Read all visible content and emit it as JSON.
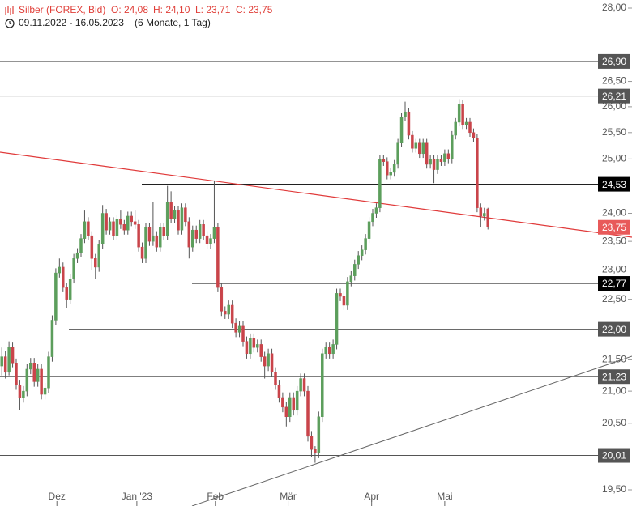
{
  "header": {
    "title": "Silber (FOREX, Bid)",
    "ohlc_labels": [
      "O: 24,08",
      "H: 24,10",
      "L: 23,71",
      "C: 23,75"
    ],
    "range": "09.11.2022 - 16.05.2023",
    "period": "(6 Monate, 1 Tag)"
  },
  "chart_data": {
    "type": "candlestick",
    "log": true,
    "up_color": "#5c9e5c",
    "down_color": "#c9444a",
    "ylim": [
      19.5,
      28
    ],
    "yticks": [
      {
        "value": 19.5,
        "label": "19,50"
      },
      {
        "value": 20.5,
        "label": "20,50"
      },
      {
        "value": 21,
        "label": "21,00"
      },
      {
        "value": 21.5,
        "label": "21,50"
      },
      {
        "value": 22.5,
        "label": "22,50"
      },
      {
        "value": 23,
        "label": "23,00"
      },
      {
        "value": 23.5,
        "label": "23,50"
      },
      {
        "value": 24,
        "label": "24,00"
      },
      {
        "value": 25,
        "label": "25,00"
      },
      {
        "value": 25.5,
        "label": "25,50"
      },
      {
        "value": 26,
        "label": "26,00"
      },
      {
        "value": 26.5,
        "label": "26,50"
      },
      {
        "value": 28,
        "label": "28,00"
      }
    ],
    "xlim": [
      -0.5,
      175
    ],
    "xticks": [
      {
        "value": 15.3,
        "label": "Dez"
      },
      {
        "value": 37.5,
        "label": "Jan '23"
      },
      {
        "value": 59.3,
        "label": "Feb"
      },
      {
        "value": 79.5,
        "label": "Mär"
      },
      {
        "value": 102.7,
        "label": "Apr"
      },
      {
        "value": 123,
        "label": "Mai"
      }
    ],
    "levels": [
      {
        "value": 26.9,
        "label": "26,90",
        "color": "#555555"
      },
      {
        "value": 26.21,
        "label": "26,21",
        "color": "#555555"
      },
      {
        "value": 24.53,
        "label": "24,53",
        "color": "#000000"
      },
      {
        "value": 23.75,
        "label": "23,75",
        "color": "#e85a5a"
      },
      {
        "value": 22.77,
        "label": "22,77",
        "color": "#000000"
      },
      {
        "value": 22.0,
        "label": "22,00",
        "color": "#555555"
      },
      {
        "value": 21.23,
        "label": "21,23",
        "color": "#555555"
      },
      {
        "value": 20.01,
        "label": "20,01",
        "color": "#555555"
      }
    ],
    "ohlc": [
      [
        21.4,
        21.7,
        21.25,
        21.55
      ],
      [
        21.55,
        21.65,
        21.2,
        21.3
      ],
      [
        21.3,
        21.8,
        21.25,
        21.7
      ],
      [
        21.7,
        21.78,
        21.38,
        21.45
      ],
      [
        21.45,
        21.52,
        21.02,
        21.1
      ],
      [
        21.1,
        21.18,
        20.7,
        20.9
      ],
      [
        20.9,
        21.08,
        20.82,
        21.0
      ],
      [
        21.0,
        21.43,
        20.92,
        21.35
      ],
      [
        21.35,
        21.53,
        21.27,
        21.45
      ],
      [
        21.45,
        21.53,
        21.07,
        21.15
      ],
      [
        21.15,
        21.43,
        21.07,
        21.35
      ],
      [
        21.35,
        21.43,
        20.87,
        20.95
      ],
      [
        20.95,
        21.13,
        20.87,
        21.05
      ],
      [
        21.05,
        21.63,
        20.97,
        21.55
      ],
      [
        21.55,
        22.23,
        21.47,
        22.15
      ],
      [
        22.15,
        23.03,
        22.07,
        22.95
      ],
      [
        22.95,
        23.2,
        22.87,
        23.05
      ],
      [
        23.05,
        23.13,
        22.62,
        22.7
      ],
      [
        22.7,
        22.78,
        22.35,
        22.5
      ],
      [
        22.5,
        22.93,
        22.42,
        22.85
      ],
      [
        22.85,
        23.28,
        22.77,
        23.2
      ],
      [
        23.2,
        23.38,
        23.12,
        23.3
      ],
      [
        23.3,
        23.63,
        23.22,
        23.55
      ],
      [
        23.55,
        24.05,
        23.47,
        23.85
      ],
      [
        23.85,
        23.93,
        23.52,
        23.6
      ],
      [
        23.6,
        23.68,
        23.0,
        23.2
      ],
      [
        23.2,
        23.28,
        22.85,
        23.05
      ],
      [
        23.05,
        23.53,
        22.97,
        23.45
      ],
      [
        23.45,
        24.15,
        23.37,
        24.0
      ],
      [
        24.0,
        24.08,
        23.62,
        23.7
      ],
      [
        23.7,
        23.93,
        23.62,
        23.85
      ],
      [
        23.85,
        23.93,
        23.52,
        23.6
      ],
      [
        23.6,
        23.98,
        23.52,
        23.9
      ],
      [
        23.9,
        24.05,
        23.72,
        23.8
      ],
      [
        23.8,
        23.88,
        23.62,
        23.7
      ],
      [
        23.7,
        24.03,
        23.62,
        23.95
      ],
      [
        23.95,
        24.03,
        23.77,
        23.85
      ],
      [
        23.85,
        24.05,
        23.72,
        23.8
      ],
      [
        23.8,
        23.88,
        23.32,
        23.4
      ],
      [
        23.4,
        23.48,
        23.12,
        23.2
      ],
      [
        23.2,
        23.83,
        23.12,
        23.75
      ],
      [
        23.75,
        23.83,
        23.42,
        23.5
      ],
      [
        23.5,
        24.2,
        23.42,
        23.6
      ],
      [
        23.6,
        23.68,
        23.32,
        23.4
      ],
      [
        23.4,
        23.83,
        23.32,
        23.75
      ],
      [
        23.75,
        23.83,
        23.52,
        23.6
      ],
      [
        23.6,
        24.5,
        23.52,
        24.2
      ],
      [
        24.2,
        24.4,
        23.82,
        23.9
      ],
      [
        23.9,
        24.13,
        23.82,
        24.05
      ],
      [
        24.05,
        24.13,
        23.62,
        23.7
      ],
      [
        23.7,
        24.18,
        23.62,
        24.1
      ],
      [
        24.1,
        24.18,
        23.77,
        23.85
      ],
      [
        23.85,
        23.93,
        23.2,
        23.4
      ],
      [
        23.4,
        23.78,
        23.32,
        23.7
      ],
      [
        23.7,
        23.78,
        23.47,
        23.55
      ],
      [
        23.55,
        23.88,
        23.47,
        23.8
      ],
      [
        23.8,
        23.88,
        23.52,
        23.6
      ],
      [
        23.6,
        23.68,
        23.37,
        23.45
      ],
      [
        23.45,
        23.63,
        23.37,
        23.55
      ],
      [
        23.55,
        24.6,
        23.47,
        23.75
      ],
      [
        23.75,
        23.83,
        22.62,
        22.7
      ],
      [
        22.7,
        22.78,
        22.22,
        22.3
      ],
      [
        22.3,
        22.38,
        22.17,
        22.25
      ],
      [
        22.25,
        22.48,
        22.17,
        22.4
      ],
      [
        22.4,
        22.48,
        22.02,
        22.1
      ],
      [
        22.1,
        22.18,
        21.87,
        21.95
      ],
      [
        21.95,
        22.13,
        21.87,
        22.05
      ],
      [
        22.05,
        22.13,
        21.72,
        21.8
      ],
      [
        21.8,
        21.88,
        21.52,
        21.6
      ],
      [
        21.6,
        21.93,
        21.52,
        21.85
      ],
      [
        21.85,
        21.93,
        21.62,
        21.7
      ],
      [
        21.7,
        21.83,
        21.62,
        21.75
      ],
      [
        21.75,
        21.83,
        21.47,
        21.55
      ],
      [
        21.55,
        21.63,
        21.2,
        21.4
      ],
      [
        21.4,
        21.68,
        21.32,
        21.6
      ],
      [
        21.6,
        21.68,
        21.22,
        21.3
      ],
      [
        21.3,
        21.38,
        21.02,
        21.1
      ],
      [
        21.1,
        21.18,
        20.82,
        20.9
      ],
      [
        20.9,
        20.98,
        20.67,
        20.75
      ],
      [
        20.75,
        20.83,
        20.45,
        20.6
      ],
      [
        20.6,
        20.98,
        20.52,
        20.9
      ],
      [
        20.9,
        20.98,
        20.62,
        20.7
      ],
      [
        20.7,
        21.08,
        20.62,
        21.0
      ],
      [
        21.0,
        21.28,
        20.92,
        21.2
      ],
      [
        21.2,
        21.28,
        20.92,
        21.0
      ],
      [
        21.0,
        21.08,
        20.22,
        20.3
      ],
      [
        20.3,
        20.38,
        19.98,
        20.1
      ],
      [
        20.1,
        20.15,
        19.9,
        20.05
      ],
      [
        20.05,
        20.68,
        19.97,
        20.6
      ],
      [
        20.6,
        21.68,
        20.52,
        21.6
      ],
      [
        21.6,
        21.78,
        21.52,
        21.7
      ],
      [
        21.7,
        21.78,
        21.52,
        21.6
      ],
      [
        21.6,
        21.83,
        21.52,
        21.75
      ],
      [
        21.75,
        22.68,
        21.67,
        22.6
      ],
      [
        22.6,
        22.68,
        22.47,
        22.55
      ],
      [
        22.55,
        22.63,
        22.32,
        22.4
      ],
      [
        22.4,
        22.88,
        22.32,
        22.8
      ],
      [
        22.8,
        22.98,
        22.72,
        22.9
      ],
      [
        22.9,
        23.18,
        22.82,
        23.1
      ],
      [
        23.1,
        23.33,
        23.02,
        23.25
      ],
      [
        23.25,
        23.43,
        23.17,
        23.35
      ],
      [
        23.35,
        23.63,
        23.27,
        23.55
      ],
      [
        23.55,
        23.93,
        23.47,
        23.85
      ],
      [
        23.85,
        24.08,
        23.77,
        24.0
      ],
      [
        24.0,
        24.18,
        23.92,
        24.1
      ],
      [
        24.1,
        25.08,
        24.02,
        25.0
      ],
      [
        25.0,
        25.08,
        24.87,
        24.95
      ],
      [
        24.95,
        25.03,
        24.62,
        24.7
      ],
      [
        24.7,
        24.83,
        24.62,
        24.75
      ],
      [
        24.75,
        24.98,
        24.67,
        24.9
      ],
      [
        24.9,
        25.38,
        24.82,
        25.3
      ],
      [
        25.3,
        25.88,
        25.22,
        25.8
      ],
      [
        25.8,
        26.1,
        25.72,
        25.9
      ],
      [
        25.9,
        25.98,
        25.37,
        25.45
      ],
      [
        25.45,
        25.53,
        25.12,
        25.2
      ],
      [
        25.2,
        25.38,
        25.12,
        25.3
      ],
      [
        25.3,
        25.38,
        25.02,
        25.1
      ],
      [
        25.1,
        25.38,
        25.02,
        25.3
      ],
      [
        25.3,
        25.38,
        24.82,
        24.9
      ],
      [
        24.9,
        25.08,
        24.82,
        25.0
      ],
      [
        25.0,
        25.08,
        24.55,
        24.8
      ],
      [
        24.8,
        25.08,
        24.72,
        25.0
      ],
      [
        25.0,
        25.08,
        24.87,
        24.95
      ],
      [
        24.95,
        25.18,
        24.87,
        25.1
      ],
      [
        25.1,
        25.18,
        24.92,
        25.0
      ],
      [
        25.0,
        25.53,
        24.92,
        25.45
      ],
      [
        25.45,
        25.78,
        25.37,
        25.7
      ],
      [
        25.7,
        26.15,
        25.62,
        26.05
      ],
      [
        26.05,
        26.13,
        25.57,
        25.65
      ],
      [
        25.65,
        25.78,
        25.57,
        25.7
      ],
      [
        25.7,
        25.78,
        25.42,
        25.5
      ],
      [
        25.5,
        25.58,
        25.32,
        25.4
      ],
      [
        25.4,
        25.48,
        24.02,
        24.1
      ],
      [
        24.1,
        24.18,
        23.75,
        23.95
      ],
      [
        23.95,
        24.1,
        23.87,
        24.0
      ],
      [
        24.08,
        24.1,
        23.71,
        23.75
      ]
    ]
  }
}
